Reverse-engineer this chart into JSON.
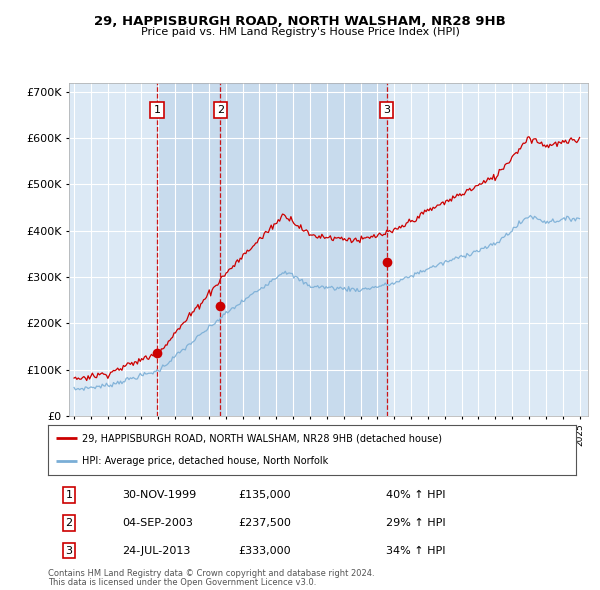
{
  "title": "29, HAPPISBURGH ROAD, NORTH WALSHAM, NR28 9HB",
  "subtitle": "Price paid vs. HM Land Registry's House Price Index (HPI)",
  "legend_label_red": "29, HAPPISBURGH ROAD, NORTH WALSHAM, NR28 9HB (detached house)",
  "legend_label_blue": "HPI: Average price, detached house, North Norfolk",
  "footnote1": "Contains HM Land Registry data © Crown copyright and database right 2024.",
  "footnote2": "This data is licensed under the Open Government Licence v3.0.",
  "transactions": [
    {
      "num": 1,
      "date": "30-NOV-1999",
      "price": 135000,
      "year": 1999.917,
      "hpi_pct": "40% ↑ HPI"
    },
    {
      "num": 2,
      "date": "04-SEP-2003",
      "price": 237500,
      "year": 2003.674,
      "hpi_pct": "29% ↑ HPI"
    },
    {
      "num": 3,
      "date": "24-JUL-2013",
      "price": 333000,
      "year": 2013.558,
      "hpi_pct": "34% ↑ HPI"
    }
  ],
  "background_color": "#ffffff",
  "plot_bg_color": "#dce9f5",
  "grid_color": "#ffffff",
  "red_color": "#cc0000",
  "blue_color": "#7aaed6",
  "vline_color": "#cc0000",
  "ylim": [
    0,
    720000
  ],
  "yticks": [
    0,
    100000,
    200000,
    300000,
    400000,
    500000,
    600000,
    700000
  ],
  "xlim_start": 1994.7,
  "xlim_end": 2025.5
}
